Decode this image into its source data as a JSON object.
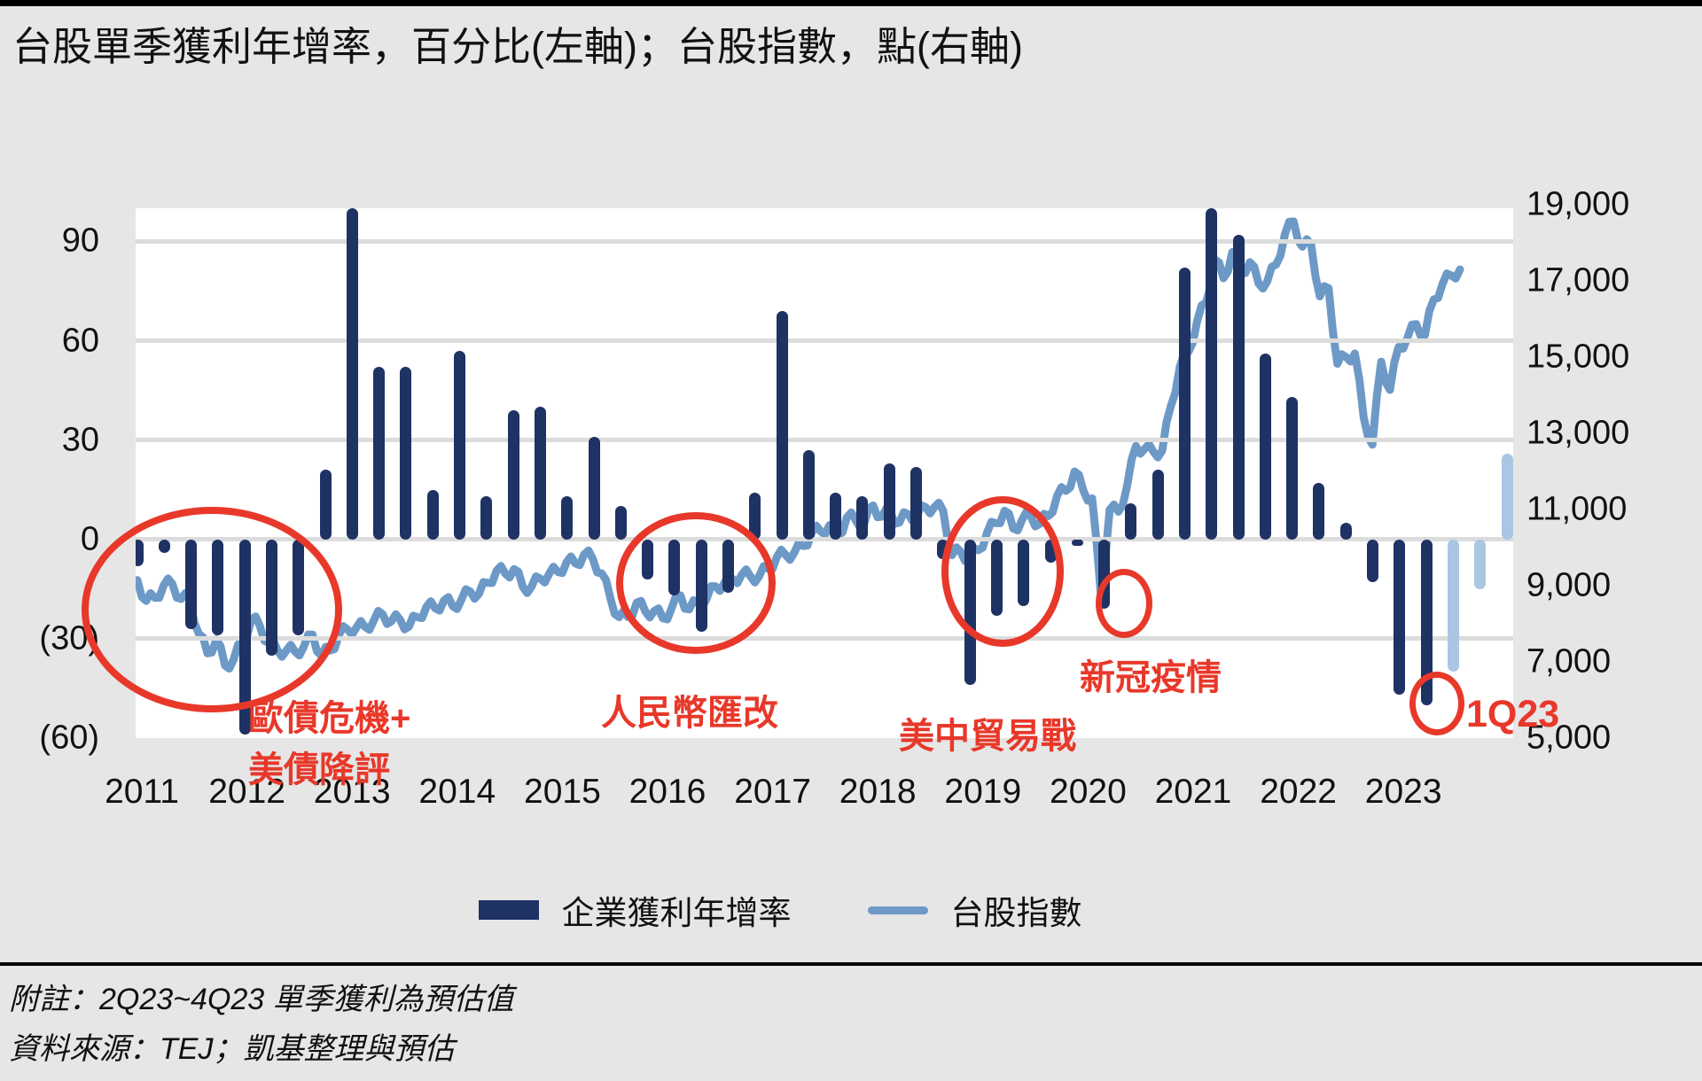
{
  "title": "台股單季獲利年增率，百分比(左軸)；台股指數，點(右軸)",
  "left_axis": {
    "labels": [
      "90",
      "60",
      "30",
      "0",
      "(30)",
      "(60)"
    ],
    "values": [
      90,
      60,
      30,
      0,
      -30,
      -60
    ]
  },
  "right_axis": {
    "labels": [
      "19,000",
      "17,000",
      "15,000",
      "13,000",
      "11,000",
      "9,000",
      "7,000",
      "5,000"
    ],
    "values": [
      19000,
      17000,
      15000,
      13000,
      11000,
      9000,
      7000,
      5000
    ]
  },
  "x_axis": {
    "years": [
      "2011",
      "2012",
      "2013",
      "2014",
      "2015",
      "2016",
      "2017",
      "2018",
      "2019",
      "2020",
      "2021",
      "2022",
      "2023"
    ]
  },
  "legend": {
    "bar_label": "企業獲利年增率",
    "line_label": "台股指數"
  },
  "annotations": {
    "euro_line1": "歐債危機+",
    "euro_line2": "美債降評",
    "rmb": "人民幣匯改",
    "tradewar": "美中貿易戰",
    "covid": "新冠疫情",
    "q123": "1Q23"
  },
  "notes": {
    "line1": "附註：2Q23~4Q23 單季獲利為預估值",
    "line2": "資料來源：TEJ；凱基整理與預估"
  },
  "colors": {
    "bar_navy": "#1E3263",
    "bar_estimate": "#A9C7E2",
    "index_line": "#6D99C7",
    "annotation_red": "#E8382A",
    "plot_bg": "#FFFFFF",
    "page_bg": "#E6E6E6",
    "gridline": "#DCDCDC"
  },
  "chart_data": {
    "type": "bar+line",
    "title": "台股單季獲利年增率，百分比(左軸)；台股指數，點(右軸)",
    "left_ylim": [
      -60,
      100
    ],
    "right_ylim": [
      5000,
      19000
    ],
    "grid": "horizontal",
    "legend_position": "bottom",
    "earnings_yoy_pct": {
      "series_name": "企業獲利年增率",
      "quarters": [
        "1Q11",
        "2Q11",
        "3Q11",
        "4Q11",
        "1Q12",
        "2Q12",
        "3Q12",
        "4Q12",
        "1Q13",
        "2Q13",
        "3Q13",
        "4Q13",
        "1Q14",
        "2Q14",
        "3Q14",
        "4Q14",
        "1Q15",
        "2Q15",
        "3Q15",
        "4Q15",
        "1Q16",
        "2Q16",
        "3Q16",
        "4Q16",
        "1Q17",
        "2Q17",
        "3Q17",
        "4Q17",
        "1Q18",
        "2Q18",
        "3Q18",
        "4Q18",
        "1Q19",
        "2Q19",
        "3Q19",
        "4Q19",
        "1Q20",
        "2Q20",
        "3Q20",
        "4Q20",
        "1Q21",
        "2Q21",
        "3Q21",
        "4Q21",
        "1Q22",
        "2Q22",
        "3Q22",
        "4Q22",
        "1Q23",
        "2Q23",
        "3Q23",
        "4Q23"
      ],
      "values": [
        -8,
        -4,
        -27,
        -29,
        -59,
        -35,
        -29,
        21,
        100,
        52,
        52,
        15,
        57,
        13,
        39,
        40,
        13,
        31,
        10,
        -12,
        -17,
        -28,
        -16,
        14,
        69,
        27,
        14,
        13,
        23,
        22,
        -6,
        -44,
        -23,
        -20,
        -7,
        -2,
        -21,
        11,
        21,
        82,
        100,
        92,
        56,
        43,
        17,
        5,
        -13,
        -47,
        -50,
        -40,
        -15,
        26
      ],
      "estimate_quarters": [
        "2Q23",
        "3Q23",
        "4Q23"
      ],
      "clipped_at_top": [
        "1Q13",
        "1Q21"
      ]
    },
    "taiex_index": {
      "series_name": "台股指數",
      "start_month": "2011-01",
      "monthly_values": [
        9145,
        8600,
        8683,
        9008,
        9045,
        8653,
        8644,
        7741,
        7225,
        7587,
        6904,
        7072,
        7517,
        8121,
        7933,
        7501,
        7301,
        7296,
        7270,
        7397,
        7715,
        7166,
        7301,
        7700,
        7850,
        7898,
        7919,
        8093,
        8254,
        8062,
        8108,
        7923,
        8173,
        8450,
        8407,
        8612,
        8462,
        8639,
        8849,
        8791,
        9075,
        9393,
        9316,
        9436,
        8967,
        8974,
        9187,
        9307,
        9362,
        9622,
        9586,
        9820,
        9701,
        9323,
        8665,
        8174,
        8181,
        8554,
        8320,
        8338,
        8145,
        8411,
        8744,
        8378,
        8535,
        8666,
        8984,
        9068,
        9166,
        9290,
        9240,
        9253,
        9447,
        9750,
        9811,
        9872,
        10041,
        10395,
        10427,
        10585,
        10329,
        10793,
        10722,
        10642,
        11104,
        10815,
        10919,
        10657,
        10874,
        10836,
        11057,
        11064,
        10966,
        9802,
        9888,
        9727,
        9932,
        10389,
        10641,
        10967,
        10498,
        10731,
        10823,
        10618,
        10829,
        11358,
        11489,
        11997,
        11495,
        11292,
        8750,
        10992,
        10942,
        11621,
        12664,
        12591,
        12515,
        12546,
        13723,
        14732,
        15138,
        15953,
        16431,
        17566,
        17068,
        17755,
        17247,
        17490,
        16935,
        16987,
        17428,
        18218,
        18560,
        17898,
        17963,
        16592,
        16807,
        14825,
        15000,
        15095,
        13424,
        12700,
        14880,
        14137,
        15265,
        15503,
        15868,
        15579,
        16512,
        16916,
        17145,
        17300
      ]
    }
  }
}
